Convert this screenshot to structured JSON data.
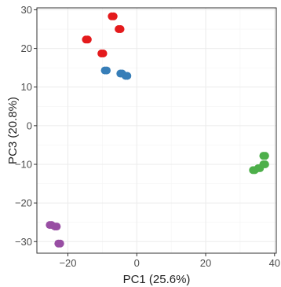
{
  "chart_data": {
    "type": "scatter",
    "title": "",
    "xlabel": "PC1 (25.6%)",
    "ylabel": "PC3 (20.8%)",
    "xlim": [
      -29,
      40.5
    ],
    "ylim": [
      -33,
      30.5
    ],
    "xticks": [
      -20,
      0,
      20,
      40
    ],
    "yticks": [
      -30,
      -20,
      -10,
      0,
      10,
      20,
      30
    ],
    "grid": true,
    "legend": "none",
    "series": [
      {
        "color": "#e41a1c",
        "points": [
          {
            "x": -7,
            "y": 28.3
          },
          {
            "x": -5,
            "y": 25.0
          },
          {
            "x": -14.5,
            "y": 22.3
          },
          {
            "x": -10,
            "y": 18.7
          }
        ]
      },
      {
        "color": "#377eb8",
        "points": [
          {
            "x": -9,
            "y": 14.3
          },
          {
            "x": -4.5,
            "y": 13.5
          },
          {
            "x": -3,
            "y": 12.9
          }
        ]
      },
      {
        "color": "#4daf4a",
        "points": [
          {
            "x": 34,
            "y": -11.5
          },
          {
            "x": 35.5,
            "y": -11.0
          },
          {
            "x": 37,
            "y": -10.0
          },
          {
            "x": 37,
            "y": -7.8
          }
        ]
      },
      {
        "color": "#984ea3",
        "points": [
          {
            "x": -25,
            "y": -25.7
          },
          {
            "x": -23.5,
            "y": -26.1
          },
          {
            "x": -22.5,
            "y": -30.5
          }
        ]
      }
    ]
  }
}
